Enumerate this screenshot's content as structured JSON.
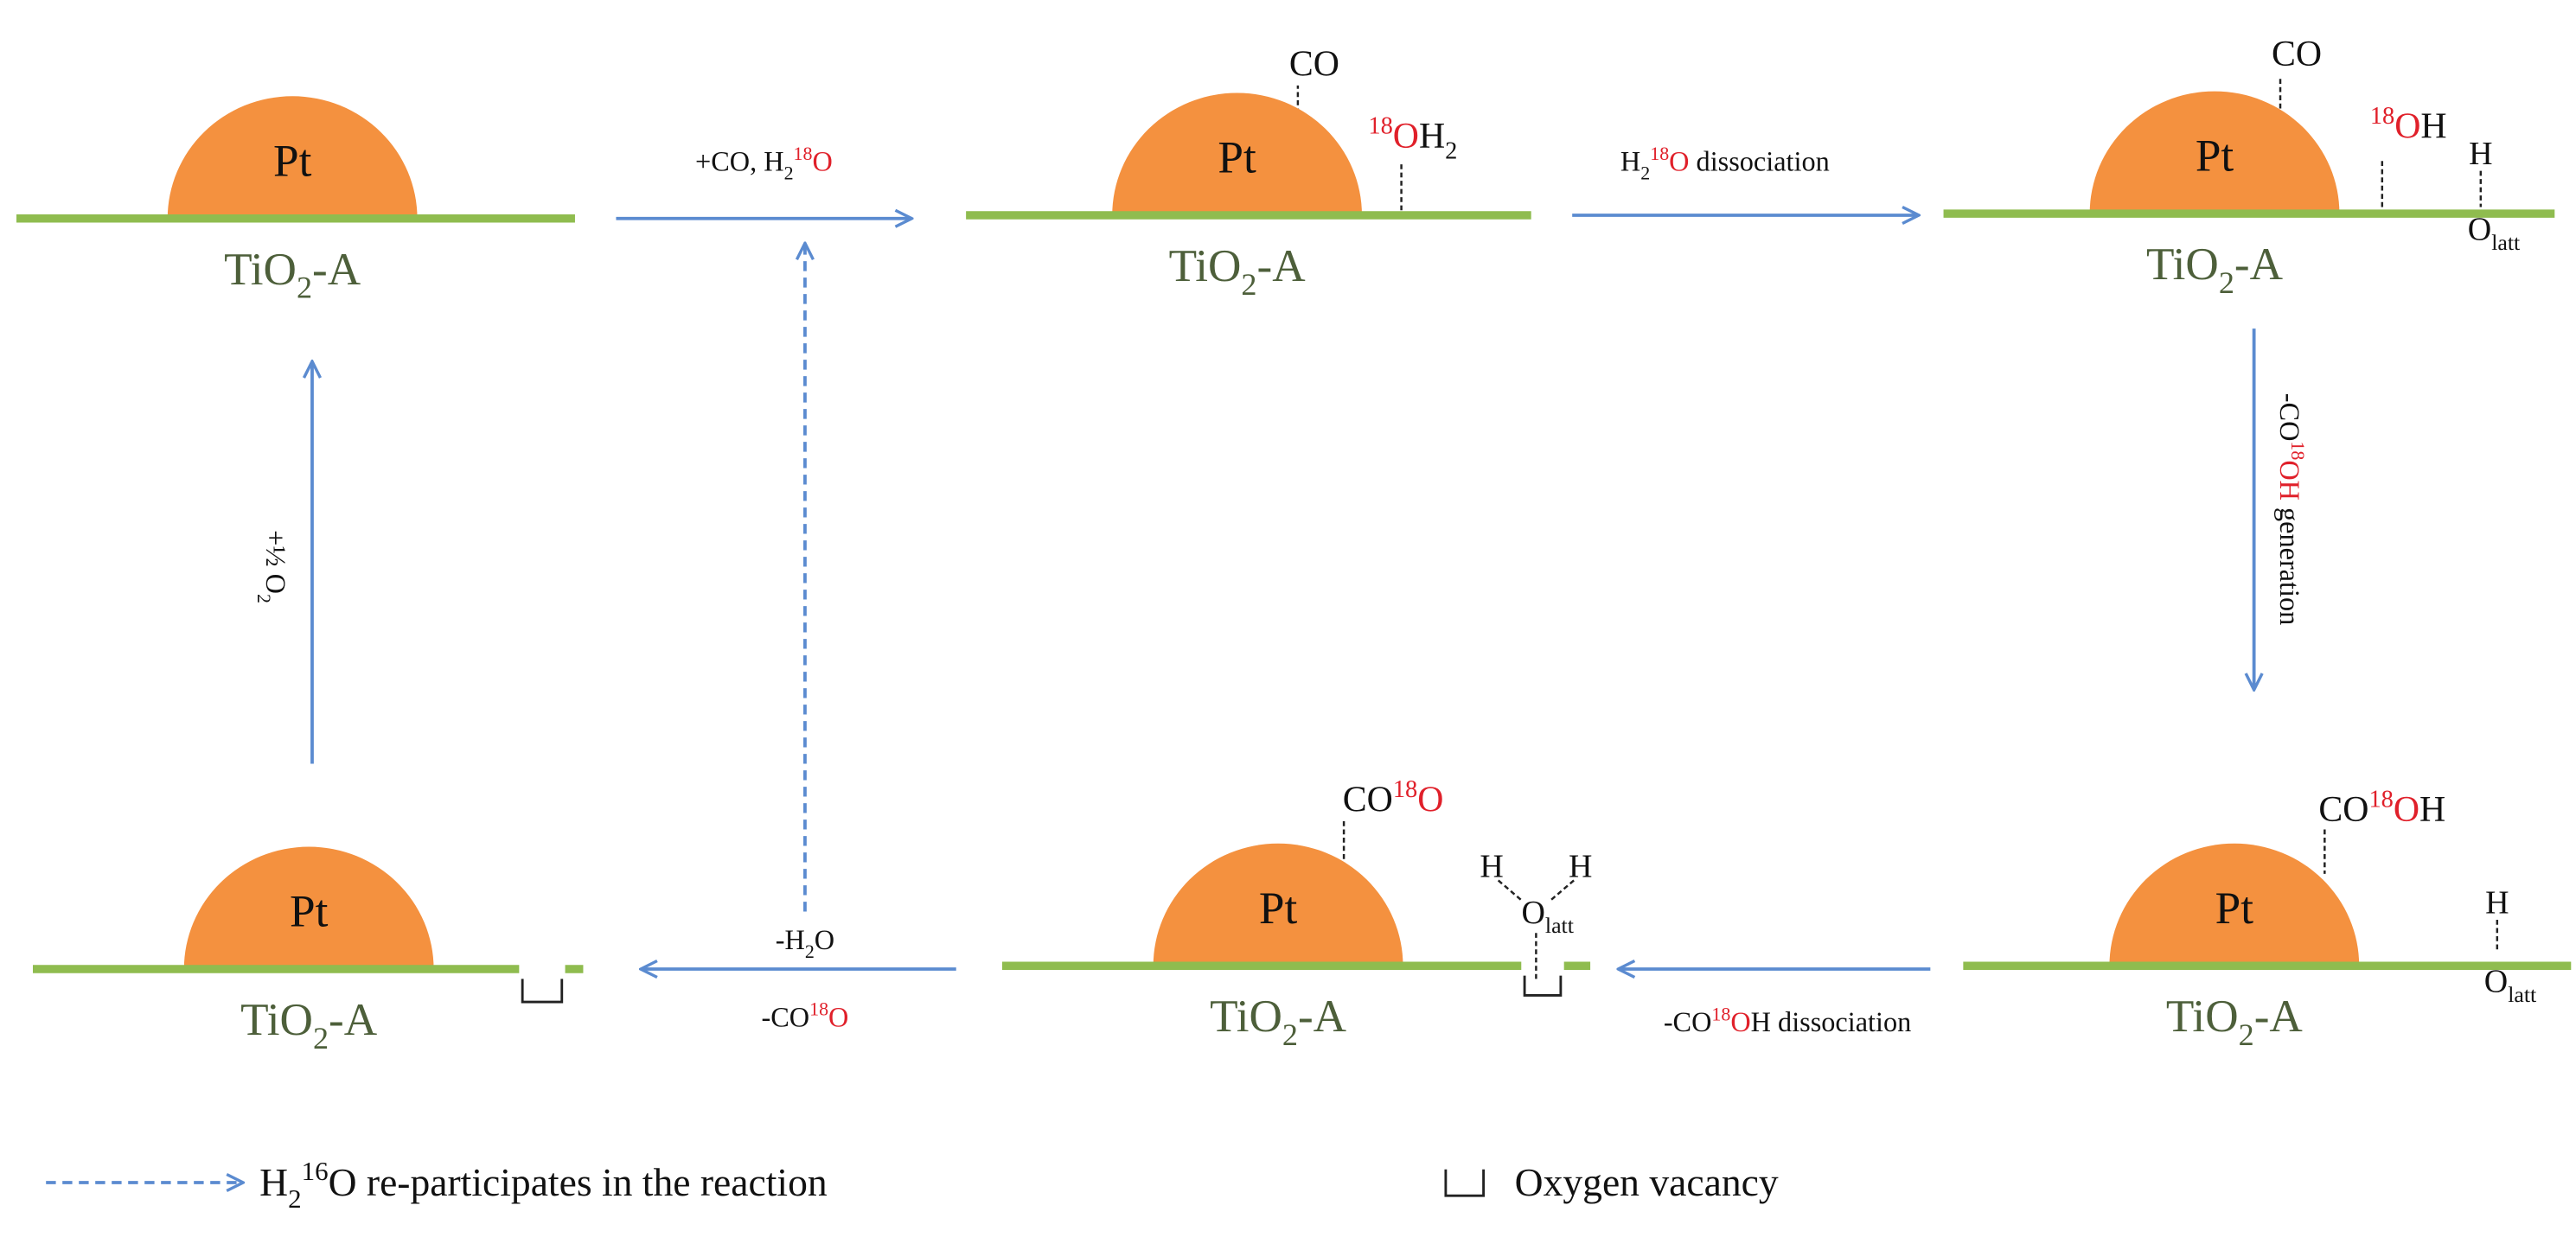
{
  "states": [
    {
      "metal": "Pt",
      "support": [
        "TiO",
        "2",
        "-A"
      ]
    },
    {
      "metal": "Pt",
      "support": [
        "TiO",
        "2",
        "-A"
      ]
    },
    {
      "metal": "Pt",
      "support": [
        "TiO",
        "2",
        "-A"
      ]
    },
    {
      "metal": "Pt",
      "support": [
        "TiO",
        "2",
        "-A"
      ]
    },
    {
      "metal": "Pt",
      "support": [
        "TiO",
        "2",
        "-A"
      ]
    },
    {
      "metal": "Pt",
      "support": [
        "TiO",
        "2",
        "-A"
      ]
    }
  ],
  "adsorbates": {
    "s2_co": [
      "CO"
    ],
    "s2_water": [
      "18",
      "O",
      "H",
      "2"
    ],
    "s3_co": [
      "CO"
    ],
    "s3_oh": [
      "18",
      "O",
      "H"
    ],
    "s3_h": [
      "H"
    ],
    "s3_olatt": [
      "O",
      "latt"
    ],
    "s4_cooh": [
      "CO",
      "18",
      "O",
      "H"
    ],
    "s4_h": [
      "H"
    ],
    "s4_olatt": [
      "O",
      "latt"
    ],
    "s5_co2": [
      "CO",
      "18",
      "O"
    ],
    "s5_h1": [
      "H"
    ],
    "s5_h2": [
      "H"
    ],
    "s5_olatt": [
      "O",
      "latt"
    ]
  },
  "arrows": {
    "add_co_water": [
      "+CO, H",
      "2",
      "18",
      "O"
    ],
    "water_dissociation": [
      "H",
      "2",
      "18",
      "O",
      " dissociation"
    ],
    "cooh_generation": [
      "-CO",
      "18",
      "OH",
      " generation"
    ],
    "cooh_dissociation": [
      "-CO",
      "18",
      "O",
      "H dissociation"
    ],
    "remove_water": [
      "-H",
      "2",
      "O"
    ],
    "remove_co2": [
      "-CO",
      "18",
      "O"
    ],
    "add_oxygen": [
      "+½ O",
      "2"
    ]
  },
  "legend": {
    "dashed": [
      "H",
      "2",
      "16",
      "O re-participates in the reaction"
    ],
    "vacancy": [
      "Oxygen vacancy"
    ]
  }
}
